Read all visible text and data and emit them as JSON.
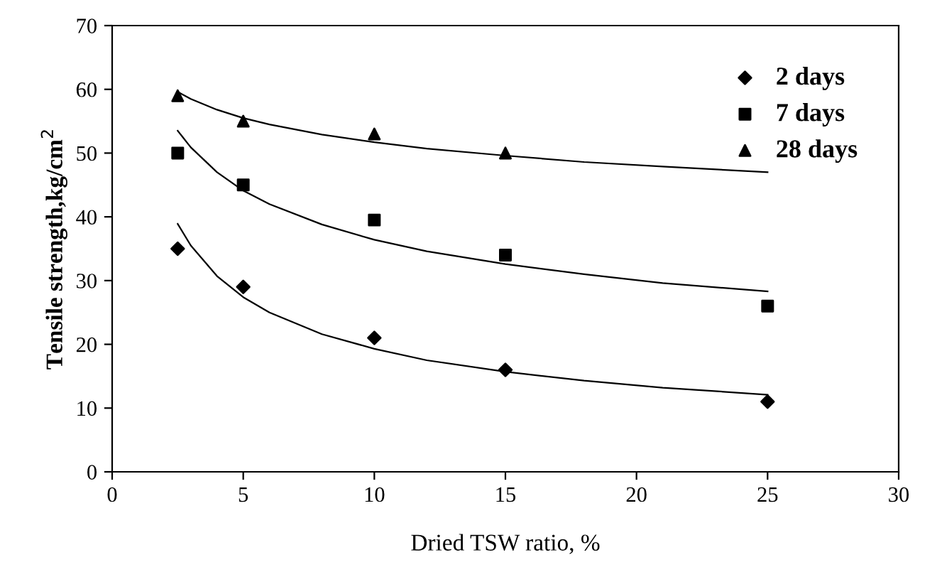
{
  "chart_data": {
    "type": "scatter",
    "xlabel": "Dried TSW ratio, %",
    "ylabel": "Tensile strength,kg/cm$^{2}$",
    "xlim": [
      0,
      30
    ],
    "ylim": [
      0,
      70
    ],
    "xticks": [
      0,
      5,
      10,
      15,
      20,
      25,
      30
    ],
    "yticks": [
      0,
      10,
      20,
      30,
      40,
      50,
      60,
      70
    ],
    "grid": false,
    "legend": "top right",
    "series": [
      {
        "name": "2 days",
        "color": "#000000",
        "marker": "diamond",
        "x": [
          2.5,
          5,
          10,
          15,
          25
        ],
        "values": [
          35,
          29,
          21,
          16,
          11
        ]
      },
      {
        "name": "7 days",
        "color": "#000000",
        "marker": "square",
        "x": [
          2.5,
          5,
          10,
          15,
          25
        ],
        "values": [
          50,
          45,
          39.5,
          34,
          26
        ]
      },
      {
        "name": "28 days",
        "color": "#000000",
        "marker": "triangle",
        "x": [
          2.5,
          5,
          10,
          15
        ],
        "values": [
          59,
          55,
          53,
          50
        ]
      },
      {
        "type": "line",
        "color": "#000000",
        "marker": "none",
        "x": [
          2.5,
          3,
          4,
          5,
          6,
          8,
          10,
          12,
          15,
          18,
          21,
          25
        ],
        "values": [
          38.9,
          35.5,
          30.7,
          27.4,
          25.0,
          21.6,
          19.3,
          17.5,
          15.7,
          14.3,
          13.2,
          12.1
        ]
      },
      {
        "type": "line",
        "color": "#000000",
        "marker": "none",
        "x": [
          2.5,
          3,
          4,
          5,
          6,
          8,
          10,
          12,
          15,
          18,
          21,
          25
        ],
        "values": [
          53.5,
          50.9,
          47.0,
          44.1,
          42.0,
          38.8,
          36.4,
          34.6,
          32.6,
          31.0,
          29.6,
          28.3
        ]
      },
      {
        "type": "line",
        "color": "#000000",
        "marker": "none",
        "x": [
          2.5,
          3,
          4,
          5,
          6,
          8,
          10,
          12,
          15,
          18,
          21,
          25
        ],
        "values": [
          59.6,
          58.5,
          56.8,
          55.5,
          54.5,
          52.9,
          51.7,
          50.7,
          49.6,
          48.6,
          47.9,
          47.0
        ]
      }
    ]
  }
}
